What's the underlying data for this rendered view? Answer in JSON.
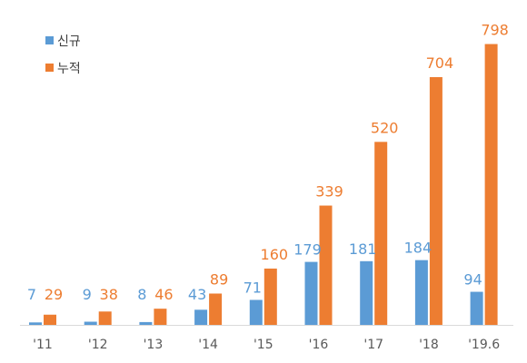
{
  "chart_data": {
    "type": "bar",
    "categories": [
      "'11",
      "'12",
      "'13",
      "'14",
      "'15",
      "'16",
      "'17",
      "'18",
      "'19.6"
    ],
    "series": [
      {
        "name": "신규",
        "values": [
          7,
          9,
          8,
          43,
          71,
          179,
          181,
          184,
          94
        ],
        "color": "#5B9BD5"
      },
      {
        "name": "누적",
        "values": [
          29,
          38,
          46,
          89,
          160,
          339,
          520,
          704,
          798
        ],
        "color": "#ED7D31"
      }
    ],
    "ylim": [
      0,
      820
    ],
    "grid": false,
    "legend_position": "top-left",
    "data_labels": true
  }
}
